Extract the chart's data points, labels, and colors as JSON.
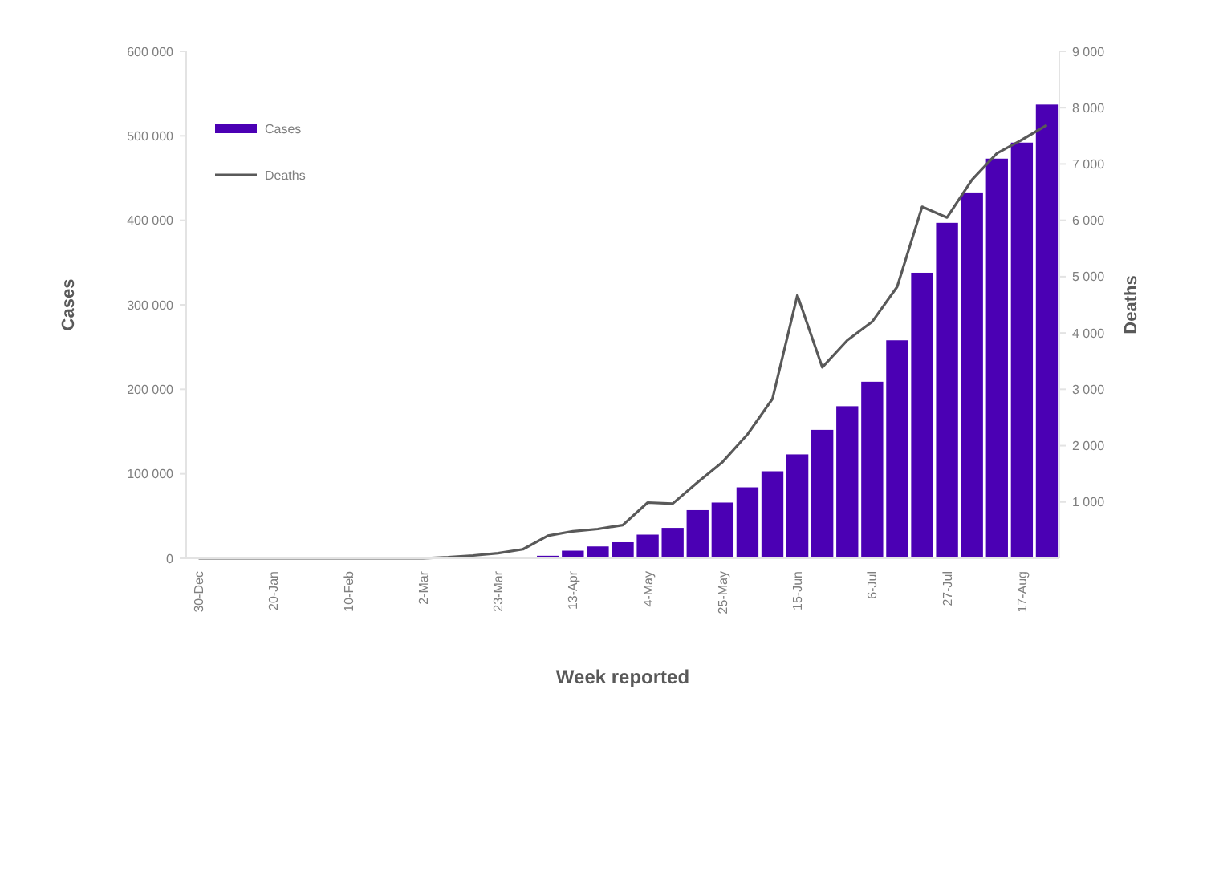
{
  "chart_data": {
    "type": "bar",
    "xlabel": "Week reported",
    "ylabel": "Cases",
    "y2label": "Deaths",
    "categories": [
      "30-Dec",
      null,
      null,
      "20-Jan",
      null,
      null,
      "10-Feb",
      null,
      null,
      "2-Mar",
      null,
      null,
      "23-Mar",
      null,
      null,
      "13-Apr",
      null,
      null,
      "4-May",
      null,
      null,
      "25-May",
      null,
      null,
      "15-Jun",
      null,
      null,
      "6-Jul",
      null,
      null,
      "27-Jul",
      null,
      null,
      "17-Aug",
      null
    ],
    "series": [
      {
        "name": "Cases",
        "color": "#4b00b4",
        "values": [
          null,
          null,
          null,
          null,
          null,
          null,
          null,
          null,
          null,
          null,
          null,
          null,
          null,
          null,
          3000,
          9000,
          14000,
          19000,
          28000,
          36000,
          57000,
          66000,
          84000,
          103000,
          123000,
          152000,
          180000,
          209000,
          258000,
          338000,
          397000,
          433000,
          473000,
          492000,
          537000
        ]
      },
      {
        "name": "Deaths",
        "type": "line",
        "axis": "y2",
        "color": "#595959",
        "values": [
          0,
          0,
          0,
          0,
          0,
          0,
          0,
          0,
          0,
          0,
          20,
          50,
          90,
          160,
          400,
          480,
          520,
          590,
          990,
          970,
          1350,
          1710,
          2200,
          2830,
          4670,
          3390,
          3870,
          4200,
          4820,
          6240,
          6050,
          6720,
          7190,
          7430,
          7690
        ]
      }
    ],
    "ylim": [
      0,
      600000
    ],
    "yticks": [
      {
        "value": 0,
        "label": "0"
      },
      {
        "value": 100000,
        "label": "100 000"
      },
      {
        "value": 200000,
        "label": "200 000"
      },
      {
        "value": 300000,
        "label": "300 000"
      },
      {
        "value": 400000,
        "label": "400 000"
      },
      {
        "value": 500000,
        "label": "500 000"
      },
      {
        "value": 600000,
        "label": "600 000"
      }
    ],
    "y2lim": [
      0,
      9000
    ],
    "y2ticks": [
      {
        "value": 1000,
        "label": "1 000"
      },
      {
        "value": 2000,
        "label": "2 000"
      },
      {
        "value": 3000,
        "label": "3 000"
      },
      {
        "value": 4000,
        "label": "4 000"
      },
      {
        "value": 5000,
        "label": "5 000"
      },
      {
        "value": 6000,
        "label": "6 000"
      },
      {
        "value": 7000,
        "label": "7 000"
      },
      {
        "value": 8000,
        "label": "8 000"
      },
      {
        "value": 9000,
        "label": "9 000"
      }
    ],
    "legend": "top left",
    "grid": false
  }
}
